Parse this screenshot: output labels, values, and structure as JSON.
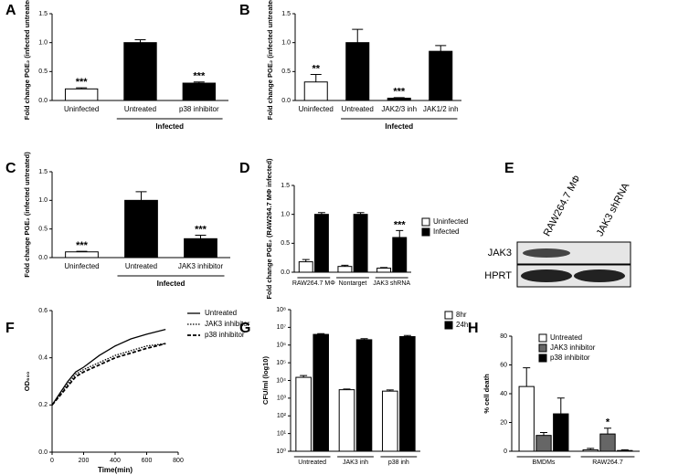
{
  "chart_data": [
    {
      "type": "bar",
      "label": "A",
      "ylabel": "Fold change PGE₂ (infected untreated)",
      "categories": [
        "Uninfected",
        "Untreated",
        "p38 inhibitor"
      ],
      "values": [
        0.2,
        1.0,
        0.3
      ],
      "errors": [
        0.02,
        0.05,
        0.02
      ],
      "colors": [
        "#ffffff",
        "#000000",
        "#000000"
      ],
      "value_annotations": [
        "***",
        null,
        "***"
      ],
      "group_label": "Infected",
      "ylim": [
        0,
        1.5
      ],
      "yticks": [
        {
          "value": 0,
          "label": "0.0"
        },
        0.5,
        {
          "value": 1,
          "label": "1.0"
        },
        1.5
      ]
    },
    {
      "type": "bar",
      "label": "B",
      "ylabel": "Fold change PGE₂ (infected untreated)",
      "categories": [
        "Uninfected",
        "Untreated",
        "JAK2/3 inh",
        "JAK1/2 inh"
      ],
      "values": [
        0.32,
        1.0,
        0.04,
        0.85
      ],
      "errors": [
        0.13,
        0.23,
        0.01,
        0.1
      ],
      "colors": [
        "#ffffff",
        "#000000",
        "#000000",
        "#000000"
      ],
      "value_annotations": [
        "**",
        null,
        "***",
        null
      ],
      "group_label": "Infected",
      "ylim": [
        0,
        1.5
      ],
      "yticks": [
        {
          "value": 0,
          "label": "0.0"
        },
        0.5,
        {
          "value": 1,
          "label": "1.0"
        },
        1.5
      ]
    },
    {
      "type": "bar",
      "label": "C",
      "ylabel": "Fold change PGE₂ (infected untreated)",
      "categories": [
        "Uninfected",
        "Untreated",
        "JAK3 inhibitor"
      ],
      "values": [
        0.1,
        1.0,
        0.33
      ],
      "errors": [
        0.01,
        0.15,
        0.06
      ],
      "colors": [
        "#ffffff",
        "#000000",
        "#000000"
      ],
      "value_annotations": [
        "***",
        null,
        "***"
      ],
      "group_label": "Infected",
      "ylim": [
        0,
        1.5
      ],
      "yticks": [
        {
          "value": 0,
          "label": "0.0"
        },
        0.5,
        {
          "value": 1,
          "label": "1.0"
        },
        1.5
      ]
    },
    {
      "type": "groupbar",
      "label": "D",
      "ylabel": "Fold change PGE₂ (RAW264.7 MΦ infected)",
      "categories": [
        "RAW264.7 MΦ",
        "Nontarget",
        "JAK3 shRNA"
      ],
      "series": [
        {
          "name": "Uninfected",
          "color": "#ffffff",
          "values": [
            0.18,
            0.1,
            0.07
          ],
          "errors": [
            0.04,
            0.02,
            0.01
          ],
          "value_annotations": [
            null,
            null,
            null
          ]
        },
        {
          "name": "Infected",
          "color": "#000000",
          "values": [
            1.0,
            1.0,
            0.6
          ],
          "errors": [
            0.03,
            0.03,
            0.12
          ],
          "value_annotations": [
            null,
            null,
            "***"
          ]
        }
      ],
      "ylim": [
        0,
        1.5
      ],
      "yticks": [
        {
          "value": 0,
          "label": "0.0"
        },
        0.5,
        {
          "value": 1,
          "label": "1.0"
        },
        1.5
      ]
    },
    {
      "type": "blot",
      "label": "E",
      "lane_labels": [
        "RAW264.7 MΦ",
        "JAK3 shRNA"
      ],
      "row_labels": [
        "JAK3",
        "HPRT"
      ]
    },
    {
      "type": "line",
      "label": "F",
      "ylabel": "OD₆₀₀",
      "xlabel": "Time(min)",
      "x": [
        0,
        50,
        100,
        150,
        200,
        300,
        400,
        500,
        600,
        720
      ],
      "series": [
        {
          "name": "Untreated",
          "color": "#000000",
          "style": "solid",
          "values": [
            0.2,
            0.25,
            0.3,
            0.34,
            0.36,
            0.41,
            0.45,
            0.48,
            0.5,
            0.52
          ]
        },
        {
          "name": "JAK3 inhibitor",
          "color": "#000000",
          "style": "dotted",
          "values": [
            0.2,
            0.24,
            0.29,
            0.33,
            0.35,
            0.38,
            0.41,
            0.43,
            0.45,
            0.46
          ]
        },
        {
          "name": "p38 inhibitor",
          "color": "#000000",
          "style": "dashed",
          "values": [
            0.2,
            0.24,
            0.28,
            0.32,
            0.34,
            0.37,
            0.4,
            0.42,
            0.44,
            0.46
          ]
        }
      ],
      "xlim": [
        0,
        800
      ],
      "xticks": [
        0,
        200,
        400,
        600,
        800
      ],
      "ylim": [
        0,
        0.6
      ],
      "yticks": [
        {
          "value": 0,
          "label": "0.0"
        },
        0.2,
        0.4,
        0.6
      ]
    },
    {
      "type": "groupbar",
      "label": "G",
      "ylabel": "CFU/ml (log10)",
      "log_scale": true,
      "categories": [
        "Untreated",
        "JAK3 inh",
        "p38 inh"
      ],
      "series": [
        {
          "name": "8hr",
          "color": "#ffffff",
          "values": [
            15000,
            3000,
            2500
          ],
          "errors": [
            4000,
            300,
            400
          ],
          "value_annotations": [
            null,
            null,
            null
          ]
        },
        {
          "name": "24hr",
          "color": "#000000",
          "values": [
            4000000,
            2000000,
            3000000
          ],
          "errors": [
            400000,
            300000,
            500000
          ],
          "value_annotations": [
            null,
            null,
            null
          ]
        }
      ],
      "ylim": [
        1,
        100000000
      ],
      "yticks": [
        {
          "value": 1,
          "label": "10⁰"
        },
        {
          "value": 10,
          "label": "10¹"
        },
        {
          "value": 100,
          "label": "10²"
        },
        {
          "value": 1000,
          "label": "10³"
        },
        {
          "value": 10000,
          "label": "10⁴"
        },
        {
          "value": 100000,
          "label": "10⁵"
        },
        {
          "value": 1000000,
          "label": "10⁶"
        },
        {
          "value": 10000000,
          "label": "10⁷"
        },
        {
          "value": 100000000,
          "label": "10⁸"
        }
      ]
    },
    {
      "type": "groupbar",
      "label": "H",
      "ylabel": "% cell death",
      "categories": [
        "BMDMs",
        "RAW264.7"
      ],
      "series": [
        {
          "name": "Untreated",
          "color": "#ffffff",
          "values": [
            45,
            1
          ],
          "errors": [
            13,
            1
          ],
          "value_annotations": [
            null,
            null
          ]
        },
        {
          "name": "JAK3 inhibitor",
          "color": "#666666",
          "values": [
            11,
            12
          ],
          "errors": [
            2,
            4
          ],
          "value_annotations": [
            null,
            "*"
          ]
        },
        {
          "name": "p38 inhibitor",
          "color": "#000000",
          "values": [
            26,
            0.5
          ],
          "errors": [
            11,
            0.5
          ],
          "value_annotations": [
            null,
            null
          ]
        }
      ],
      "ylim": [
        0,
        80
      ],
      "yticks": [
        0,
        20,
        40,
        60,
        80
      ]
    }
  ]
}
